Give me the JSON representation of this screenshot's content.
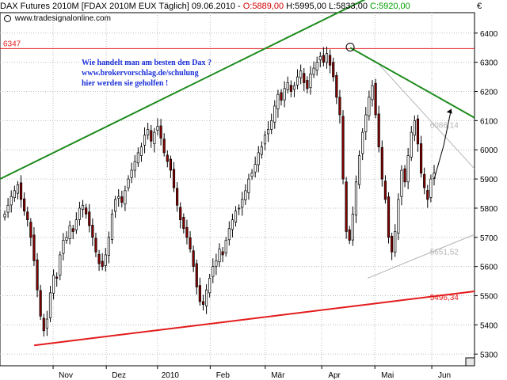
{
  "header": {
    "title": "DAX Futures 2010M [FDAX 2010M EUX  Täglich] 09.06.2010 -",
    "open": "O:5889,00",
    "high": "H:5995,00",
    "low": "L:5833,00",
    "close": "C:5920,00",
    "currency": "€",
    "colors": {
      "open": "#d00000",
      "close": "#00a000",
      "text": "#000000"
    }
  },
  "website": "www.tradesignalonline.com",
  "annotation": {
    "line1": "Wie handelt man am besten den Dax ?",
    "line2": "www.brokervorschlag.de/schulung",
    "line3": "hier werden sie geholfen !",
    "color": "#1a2fd8"
  },
  "chart_data": {
    "type": "candlestick",
    "title": "DAX Futures 2010M [FDAX 2010M EUX  Täglich] 09.06.2010",
    "ylim": [
      5260,
      6470
    ],
    "y_ticks": [
      5300,
      5400,
      5500,
      5600,
      5700,
      5800,
      5900,
      6000,
      6100,
      6200,
      6300,
      6400
    ],
    "x_tick_labels": [
      "Nov",
      "Dez",
      "2010",
      "Feb",
      "Mär",
      "Apr",
      "Mai",
      "Jun"
    ],
    "grid": true,
    "candle_colors": {
      "up": "#ffffff",
      "down": "#8b0000",
      "wick": "#000000"
    },
    "closes": [
      5780,
      5810,
      5840,
      5860,
      5880,
      5830,
      5790,
      5760,
      5700,
      5620,
      5520,
      5430,
      5380,
      5420,
      5510,
      5570,
      5560,
      5640,
      5690,
      5700,
      5740,
      5720,
      5760,
      5800,
      5810,
      5780,
      5740,
      5700,
      5650,
      5610,
      5600,
      5640,
      5700,
      5780,
      5830,
      5840,
      5820,
      5860,
      5900,
      5930,
      5960,
      5990,
      6010,
      6050,
      6070,
      6030,
      6060,
      6080,
      6040,
      5990,
      5960,
      5930,
      5870,
      5810,
      5760,
      5730,
      5700,
      5660,
      5600,
      5530,
      5480,
      5470,
      5520,
      5560,
      5600,
      5620,
      5660,
      5640,
      5690,
      5730,
      5760,
      5790,
      5800,
      5830,
      5860,
      5900,
      5920,
      5950,
      5990,
      6010,
      6050,
      6070,
      6100,
      6150,
      6190,
      6170,
      6210,
      6230,
      6200,
      6220,
      6250,
      6270,
      6230,
      6210,
      6260,
      6280,
      6300,
      6320,
      6300,
      6330,
      6290,
      6250,
      6180,
      6120,
      5900,
      5720,
      5690,
      5780,
      5890,
      5980,
      6060,
      6120,
      6180,
      6220,
      6120,
      6010,
      5900,
      5830,
      5700,
      5650,
      5720,
      5830,
      5930,
      5890,
      5980,
      6060,
      6100,
      6020,
      5920,
      5870,
      5830,
      5900,
      5920
    ],
    "lines": [
      {
        "name": "Oberer Trend",
        "color": "#1e8b1e",
        "from": [
          0.0,
          5900
        ],
        "to": [
          1.0,
          6700
        ]
      },
      {
        "name": "Widerstand",
        "color": "#1e8b1e",
        "from": [
          0.738,
          6350
        ],
        "to": [
          1.0,
          6110
        ]
      },
      {
        "name": "Unterstützung",
        "color": "#e31b1b",
        "from": [
          0.072,
          5330
        ],
        "to": [
          1.0,
          5515
        ]
      },
      {
        "name": "Keil oben",
        "color": "#b5b5b5",
        "from": [
          0.8,
          6290
        ],
        "to": [
          1.0,
          5935
        ]
      },
      {
        "name": "Keil unten",
        "color": "#b5b5b5",
        "from": [
          0.775,
          5560
        ],
        "to": [
          1.0,
          5710
        ]
      }
    ],
    "levels": [
      {
        "value": 6347,
        "label": "6347",
        "color": "#e31b1b"
      }
    ],
    "annotations": [
      {
        "label": "6086,14",
        "value": 6086.14,
        "color": "#b5b5b5"
      },
      {
        "label": "5651,52",
        "value": 5651.52,
        "color": "#b5b5b5"
      },
      {
        "label": "5496,34",
        "value": 5496.34,
        "color": "#e31b1b"
      }
    ]
  }
}
